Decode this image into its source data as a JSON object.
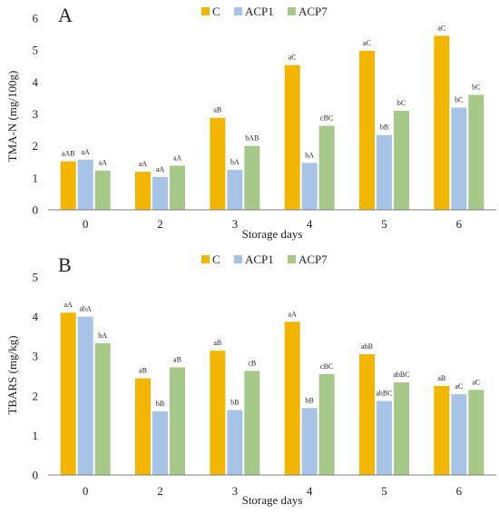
{
  "colors": {
    "C": "#f2b600",
    "ACP1": "#a7c3e6",
    "ACP7": "#a6c98a",
    "axis": "#7f7f7f"
  },
  "chart_data": [
    {
      "type": "bar",
      "panel": "A",
      "categories": [
        "0",
        "2",
        "3",
        "4",
        "5",
        "6"
      ],
      "series": [
        {
          "name": "C",
          "values": [
            1.52,
            1.19,
            2.88,
            4.53,
            4.98,
            5.45
          ],
          "labels": [
            "aAB",
            "aA",
            "aB",
            "aC",
            "aC",
            "aC"
          ]
        },
        {
          "name": "ACP1",
          "values": [
            1.57,
            1.03,
            1.25,
            1.47,
            2.34,
            3.2
          ],
          "labels": [
            "aA",
            "aA",
            "bA",
            "bA",
            "bB",
            "bC"
          ]
        },
        {
          "name": "ACP7",
          "values": [
            1.23,
            1.38,
            2.0,
            2.63,
            3.1,
            3.6
          ],
          "labels": [
            "aA",
            "aA",
            "bAB",
            "cBC",
            "bC",
            "bC"
          ]
        }
      ],
      "xlabel": "Storage days",
      "ylabel": "TMA-N (mg/100g)",
      "ylim": [
        0,
        6
      ],
      "yticks": [
        "0",
        "1",
        "2",
        "3",
        "4",
        "5",
        "6"
      ],
      "legend": "top-center"
    },
    {
      "type": "bar",
      "panel": "B",
      "categories": [
        "0",
        "2",
        "3",
        "4",
        "5",
        "6"
      ],
      "series": [
        {
          "name": "C",
          "values": [
            4.1,
            2.44,
            3.14,
            3.87,
            3.05,
            2.25
          ],
          "labels": [
            "aA",
            "aB",
            "aB",
            "aA",
            "abB",
            "aB"
          ]
        },
        {
          "name": "ACP1",
          "values": [
            4.0,
            1.61,
            1.64,
            1.69,
            1.87,
            2.04
          ],
          "labels": [
            "abA",
            "bB",
            "bB",
            "bB",
            "abBC",
            "aC"
          ]
        },
        {
          "name": "ACP7",
          "values": [
            3.33,
            2.72,
            2.63,
            2.55,
            2.34,
            2.15
          ],
          "labels": [
            "bA",
            "aB",
            "cB",
            "cBC",
            "abBC",
            "aC"
          ]
        }
      ],
      "xlabel": "Storage days",
      "ylabel": "TBARS (mg/kg)",
      "ylim": [
        0,
        5
      ],
      "yticks": [
        "0",
        "1",
        "2",
        "3",
        "4",
        "5"
      ],
      "legend": "top-center"
    }
  ]
}
